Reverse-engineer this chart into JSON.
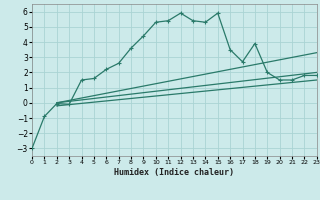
{
  "xlabel": "Humidex (Indice chaleur)",
  "bg_color": "#cceaea",
  "grid_color": "#aad4d4",
  "line_color": "#2a7a6a",
  "xlim": [
    0,
    23
  ],
  "ylim": [
    -3.5,
    6.5
  ],
  "xticks": [
    0,
    1,
    2,
    3,
    4,
    5,
    6,
    7,
    8,
    9,
    10,
    11,
    12,
    13,
    14,
    15,
    16,
    17,
    18,
    19,
    20,
    21,
    22,
    23
  ],
  "yticks": [
    -3,
    -2,
    -1,
    0,
    1,
    2,
    3,
    4,
    5,
    6
  ],
  "series1_x": [
    0,
    1,
    2,
    3,
    4,
    5,
    6,
    7,
    8,
    9,
    10,
    11,
    12,
    13,
    14,
    15,
    16,
    17,
    18,
    19,
    20,
    21,
    22,
    23
  ],
  "series1_y": [
    -3.0,
    -0.9,
    -0.05,
    -0.1,
    1.5,
    1.6,
    2.2,
    2.6,
    3.6,
    4.4,
    5.3,
    5.4,
    5.9,
    5.4,
    5.3,
    5.9,
    3.5,
    2.7,
    3.9,
    2.0,
    1.5,
    1.5,
    1.8,
    1.8
  ],
  "series2_x": [
    2,
    23
  ],
  "series2_y": [
    0.0,
    2.0
  ],
  "series3_x": [
    2,
    23
  ],
  "series3_y": [
    -0.2,
    1.5
  ],
  "series4_x": [
    2,
    23
  ],
  "series4_y": [
    0.0,
    3.3
  ]
}
